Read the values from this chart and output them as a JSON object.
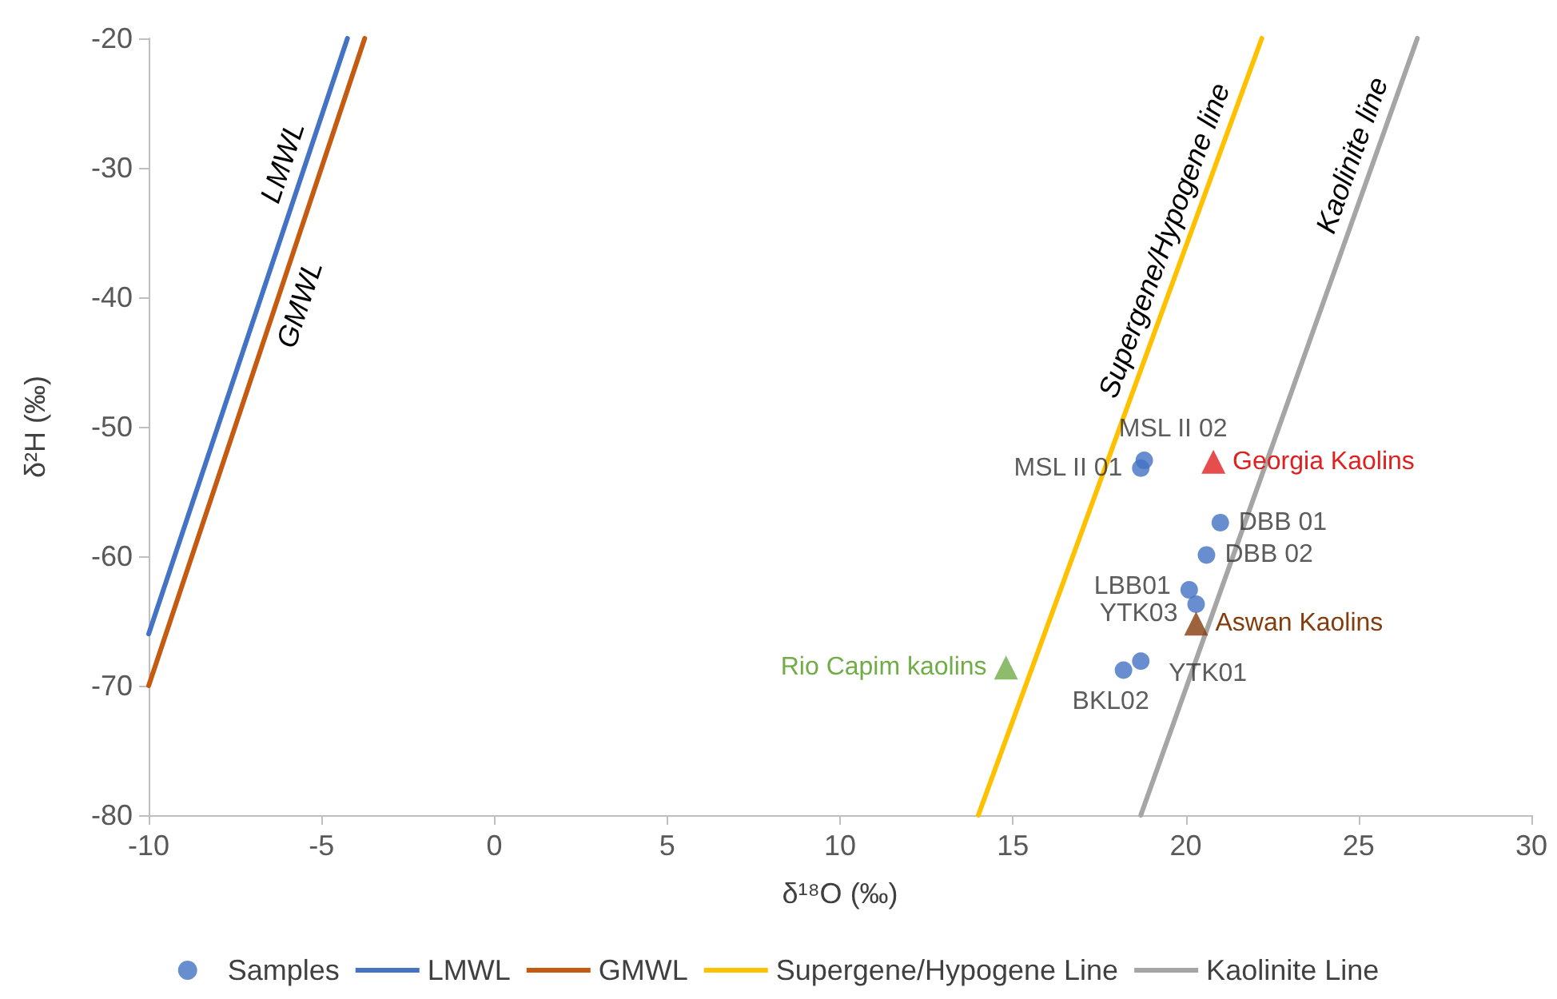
{
  "chart_data": {
    "type": "scatter",
    "xlabel": "δ¹⁸O (‰)",
    "ylabel": "δ²H (‰)",
    "xlim": [
      -10,
      30
    ],
    "xticks": [
      -10,
      -5,
      0,
      5,
      10,
      15,
      20,
      25,
      30
    ],
    "ylim": [
      -80,
      -20
    ],
    "yticks": [
      -80,
      -70,
      -60,
      -50,
      -40,
      -30,
      -20
    ],
    "legend": "bottom",
    "series": [
      {
        "name": "Samples",
        "marker": "circle",
        "color": "#4472c4",
        "x": [
          18.8,
          18.7,
          21.0,
          20.6,
          20.1,
          20.3,
          18.7,
          18.2
        ],
        "values": [
          -52.6,
          -53.2,
          -57.4,
          -59.9,
          -62.6,
          -63.7,
          -68.1,
          -68.8
        ],
        "value_labels": [
          "MSL II 02",
          "MSL II 01",
          "DBB 01",
          "DBB 02",
          "LBB01",
          "YTK03",
          "YTK01",
          "BKL02"
        ]
      },
      {
        "name": "LMWL",
        "type": "line",
        "marker": "none",
        "color": "#4472c4",
        "x": [
          -10,
          -4.25
        ],
        "values": [
          -66,
          -20
        ]
      },
      {
        "name": "GMWL",
        "type": "line",
        "marker": "none",
        "color": "#c55a11",
        "x": [
          -10,
          -3.75
        ],
        "values": [
          -70,
          -20
        ]
      },
      {
        "name": "Supergene/Hypogene Line",
        "type": "line",
        "marker": "none",
        "color": "#ffc000",
        "x": [
          14.0,
          22.2
        ],
        "values": [
          -80,
          -20
        ]
      },
      {
        "name": "Kaolinite Line",
        "type": "line",
        "marker": "none",
        "color": "#a5a5a5",
        "x": [
          18.7,
          26.7
        ],
        "values": [
          -80,
          -20
        ]
      },
      {
        "marker": "triangle",
        "color": "#e02020",
        "x": [
          20.8
        ],
        "values": [
          -52.7
        ]
      },
      {
        "marker": "triangle",
        "color": "#843c0c",
        "x": [
          20.3
        ],
        "values": [
          -65.2
        ]
      },
      {
        "marker": "triangle",
        "color": "#70ad47",
        "x": [
          14.8
        ],
        "values": [
          -68.6
        ]
      }
    ],
    "annotations": [
      "LMWL",
      "GMWL",
      "Supergene/Hypogene line",
      "Kaolinite line",
      {
        "text": "Georgia Kaolins",
        "x": 20.8,
        "y": -52.7
      },
      {
        "text": "Aswan Kaolins",
        "x": 20.3,
        "y": -65.2
      },
      {
        "text": "Rio Capim kaolins",
        "x": 14.8,
        "y": -68.6
      }
    ]
  }
}
